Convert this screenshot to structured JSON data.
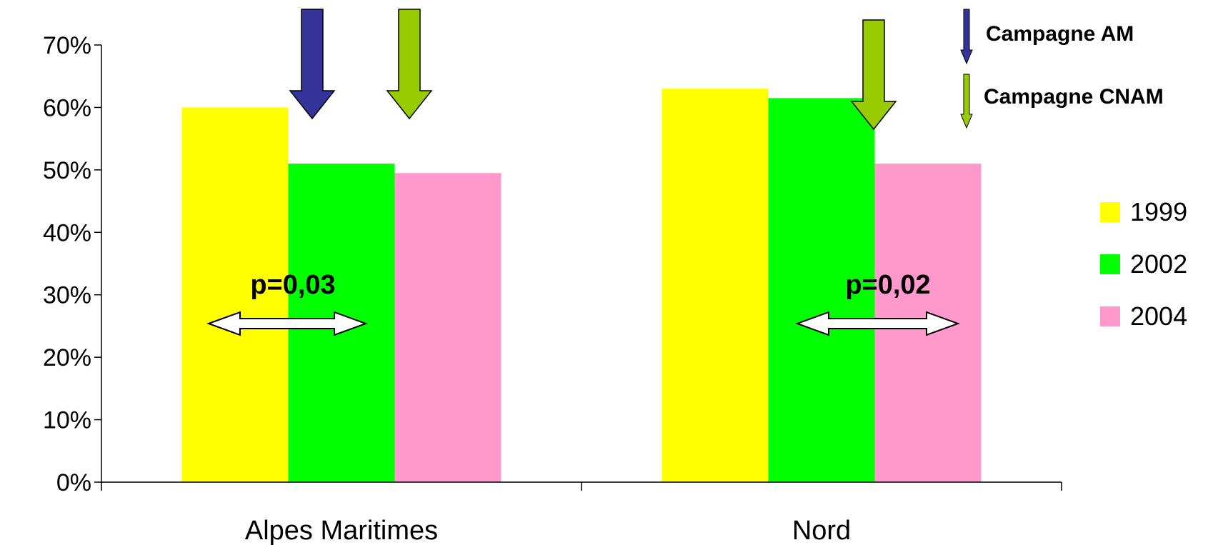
{
  "chart_data": {
    "type": "bar",
    "categories": [
      "Alpes Maritimes",
      "Nord"
    ],
    "series": [
      {
        "name": "1999",
        "color": "#FFFF00",
        "values": [
          0.6,
          0.63
        ]
      },
      {
        "name": "2002",
        "color": "#00FF00",
        "values": [
          0.51,
          0.615
        ]
      },
      {
        "name": "2004",
        "color": "#FF99CC",
        "values": [
          0.495,
          0.51
        ]
      }
    ],
    "ylim": [
      0,
      0.7
    ],
    "yticks": [
      0,
      0.1,
      0.2,
      0.3,
      0.4,
      0.5,
      0.6,
      0.7
    ],
    "ytick_labels": [
      "0%",
      "10%",
      "20%",
      "30%",
      "40%",
      "50%",
      "60%",
      "70%"
    ],
    "title": "",
    "xlabel": "",
    "ylabel": "",
    "grid": false,
    "legend_position": "right",
    "annotations": {
      "pvalues": [
        {
          "category": "Alpes Maritimes",
          "text": "p=0,03"
        },
        {
          "category": "Nord",
          "text": "p=0,02"
        }
      ],
      "campaigns": [
        {
          "label": "Campagne AM",
          "color": "#333399",
          "icon": "arrow-down-icon"
        },
        {
          "label": "Campagne CNAM",
          "color": "#99CC00",
          "icon": "arrow-down-icon"
        }
      ]
    }
  }
}
